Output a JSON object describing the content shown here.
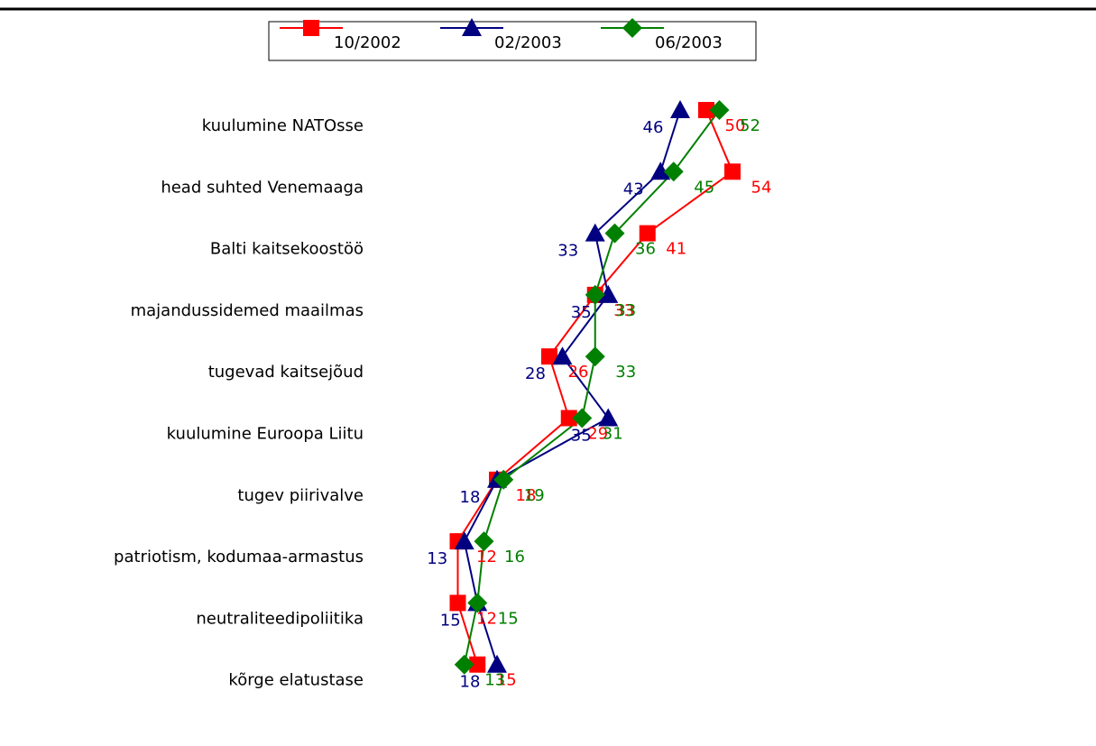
{
  "chart_data": {
    "type": "line",
    "categories": [
      "kuulumine NATOsse",
      "head suhted Venemaaga",
      "Balti kaitsekoostöö",
      "majandussidemed maailmas",
      "tugevad kaitsejõud",
      "kuulumine Euroopa Liitu",
      "tugev piirivalve",
      "patriotism, kodumaa-armastus",
      "neutraliteedipoliitika",
      "kõrge elatustase"
    ],
    "series": [
      {
        "name": "10/2002",
        "color": "#ff0000",
        "marker": "square",
        "values": [
          50,
          54,
          41,
          33,
          26,
          29,
          18,
          12,
          12,
          15
        ]
      },
      {
        "name": "02/2003",
        "color": "#000080",
        "marker": "triangle",
        "values": [
          46,
          43,
          33,
          35,
          28,
          35,
          18,
          13,
          15,
          18
        ]
      },
      {
        "name": "06/2003",
        "color": "#008000",
        "marker": "diamond",
        "values": [
          52,
          45,
          36,
          33,
          33,
          31,
          19,
          16,
          15,
          13
        ]
      }
    ],
    "legend": "top"
  }
}
